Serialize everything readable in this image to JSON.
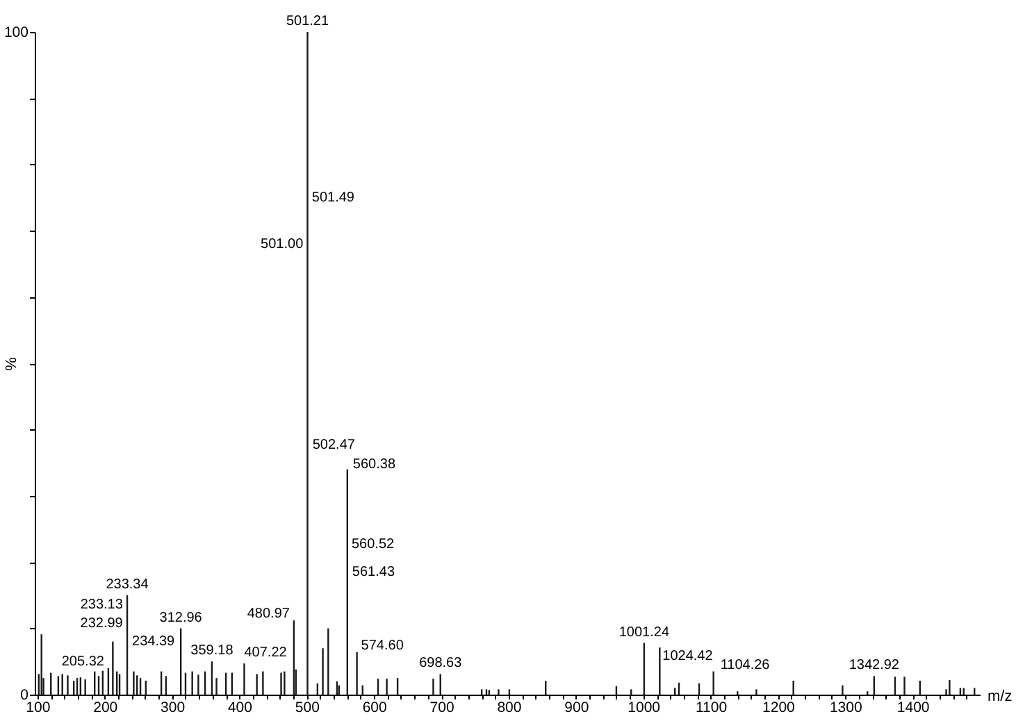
{
  "chart_data": {
    "type": "bar",
    "xlabel": "m/z",
    "ylabel": "%",
    "color": "#1a1a1a",
    "x": [
      102,
      106,
      109,
      120,
      131,
      137,
      145,
      154,
      159,
      164,
      171,
      185,
      191,
      197,
      205.32,
      212,
      218,
      222,
      233.34,
      243,
      248,
      253,
      261,
      284,
      291,
      312.96,
      320,
      330,
      339,
      349,
      359.18,
      366,
      380,
      389,
      407.22,
      426,
      435,
      462,
      467,
      480.97,
      484,
      501.21,
      516,
      524,
      532,
      545,
      548,
      560.38,
      574.6,
      583,
      606,
      619,
      635,
      688,
      698.63,
      760,
      767,
      771,
      785,
      801,
      855,
      960,
      982,
      1001.24,
      1024.42,
      1047,
      1053,
      1083,
      1104.26,
      1140,
      1168,
      1223,
      1296,
      1333,
      1342.92,
      1374,
      1388,
      1411,
      1450,
      1455,
      1471,
      1476,
      1492
    ],
    "values": [
      3.1,
      9.1,
      2.5,
      3.3,
      2.8,
      3.1,
      2.9,
      2.1,
      2.5,
      2.6,
      2.3,
      3.5,
      2.8,
      3.6,
      4.0,
      8.0,
      3.5,
      3.1,
      15.0,
      3.5,
      2.9,
      2.5,
      2.1,
      3.5,
      2.8,
      10.0,
      3.3,
      3.5,
      3.0,
      3.5,
      5.0,
      2.5,
      3.3,
      3.3,
      4.7,
      3.1,
      3.5,
      3.3,
      3.5,
      11.2,
      3.8,
      100,
      1.7,
      7.0,
      10.0,
      2.0,
      1.4,
      34.0,
      6.4,
      1.4,
      2.4,
      2.4,
      2.5,
      2.4,
      3.1,
      0.8,
      0.8,
      0.7,
      0.8,
      0.8,
      2.1,
      1.3,
      0.8,
      7.8,
      7.1,
      1.0,
      1.8,
      1.7,
      3.5,
      0.5,
      0.8,
      2.1,
      1.4,
      0.5,
      2.8,
      2.7,
      2.7,
      2.1,
      0.8,
      2.2,
      1.0,
      1.0,
      1.0
    ],
    "xlim": [
      96,
      1500
    ],
    "xticks": [
      100,
      {
        "value": 120,
        "label": null
      },
      {
        "value": 140,
        "label": null
      },
      {
        "value": 160,
        "label": null
      },
      {
        "value": 180,
        "label": null
      },
      200,
      {
        "value": 220,
        "label": null
      },
      {
        "value": 240,
        "label": null
      },
      {
        "value": 260,
        "label": null
      },
      {
        "value": 280,
        "label": null
      },
      300,
      {
        "value": 320,
        "label": null
      },
      {
        "value": 340,
        "label": null
      },
      {
        "value": 360,
        "label": null
      },
      {
        "value": 380,
        "label": null
      },
      400,
      {
        "value": 420,
        "label": null
      },
      {
        "value": 440,
        "label": null
      },
      {
        "value": 460,
        "label": null
      },
      {
        "value": 480,
        "label": null
      },
      500,
      {
        "value": 520,
        "label": null
      },
      {
        "value": 540,
        "label": null
      },
      {
        "value": 560,
        "label": null
      },
      {
        "value": 580,
        "label": null
      },
      600,
      {
        "value": 620,
        "label": null
      },
      {
        "value": 640,
        "label": null
      },
      {
        "value": 660,
        "label": null
      },
      {
        "value": 680,
        "label": null
      },
      700,
      {
        "value": 720,
        "label": null
      },
      {
        "value": 740,
        "label": null
      },
      {
        "value": 760,
        "label": null
      },
      {
        "value": 780,
        "label": null
      },
      800,
      {
        "value": 820,
        "label": null
      },
      {
        "value": 840,
        "label": null
      },
      {
        "value": 860,
        "label": null
      },
      {
        "value": 880,
        "label": null
      },
      900,
      {
        "value": 920,
        "label": null
      },
      {
        "value": 940,
        "label": null
      },
      {
        "value": 960,
        "label": null
      },
      {
        "value": 980,
        "label": null
      },
      1000,
      {
        "value": 1020,
        "label": null
      },
      {
        "value": 1040,
        "label": null
      },
      {
        "value": 1060,
        "label": null
      },
      {
        "value": 1080,
        "label": null
      },
      1100,
      {
        "value": 1120,
        "label": null
      },
      {
        "value": 1140,
        "label": null
      },
      {
        "value": 1160,
        "label": null
      },
      {
        "value": 1180,
        "label": null
      },
      1200,
      {
        "value": 1220,
        "label": null
      },
      {
        "value": 1240,
        "label": null
      },
      {
        "value": 1260,
        "label": null
      },
      {
        "value": 1280,
        "label": null
      },
      1300,
      {
        "value": 1320,
        "label": null
      },
      {
        "value": 1340,
        "label": null
      },
      {
        "value": 1360,
        "label": null
      },
      {
        "value": 1380,
        "label": null
      },
      1400,
      {
        "value": 1420,
        "label": null
      },
      {
        "value": 1440,
        "label": null
      },
      {
        "value": 1460,
        "label": null
      },
      {
        "value": 1480,
        "label": null
      }
    ],
    "ylim": [
      0,
      100
    ],
    "yticks": [
      0,
      {
        "value": 10,
        "label": null
      },
      {
        "value": 20,
        "label": null
      },
      {
        "value": 30,
        "label": null
      },
      {
        "value": 40,
        "label": null
      },
      {
        "value": 50,
        "label": null
      },
      {
        "value": 60,
        "label": null
      },
      {
        "value": 70,
        "label": null
      },
      {
        "value": 80,
        "label": null
      },
      {
        "value": 90,
        "label": null
      },
      100
    ],
    "annotations": [
      {
        "text": "501.21",
        "x": 501.21,
        "y": 100
      },
      {
        "text": "501.49",
        "x": 501.49,
        "y": 74
      },
      {
        "text": "501.00",
        "x": 501.0,
        "y": 67
      },
      {
        "text": "502.47",
        "x": 502.47,
        "y": 35
      },
      {
        "text": "560.38",
        "x": 560.38,
        "y": 34
      },
      {
        "text": "560.52",
        "x": 560.52,
        "y": 21.7
      },
      {
        "text": "561.43",
        "x": 561.43,
        "y": 17.5
      },
      {
        "text": "233.34",
        "x": 233.34,
        "y": 15
      },
      {
        "text": "233.13",
        "x": 233.13,
        "y": 12.6
      },
      {
        "text": "232.99",
        "x": 232.99,
        "y": 9.8
      },
      {
        "text": "234.39",
        "x": 234.39,
        "y": 7.0
      },
      {
        "text": "205.32",
        "x": 205.32,
        "y": 4.0
      },
      {
        "text": "312.96",
        "x": 312.96,
        "y": 10
      },
      {
        "text": "359.18",
        "x": 359.18,
        "y": 5
      },
      {
        "text": "407.22",
        "x": 407.22,
        "y": 4.7
      },
      {
        "text": "480.97",
        "x": 480.97,
        "y": 11.2
      },
      {
        "text": "574.60",
        "x": 574.6,
        "y": 6.4
      },
      {
        "text": "698.63",
        "x": 698.63,
        "y": 3.1
      },
      {
        "text": "1001.24",
        "x": 1001.24,
        "y": 7.8
      },
      {
        "text": "1024.42",
        "x": 1024.42,
        "y": 7.1
      },
      {
        "text": "1104.26",
        "x": 1104.26,
        "y": 3.5
      },
      {
        "text": "1342.92",
        "x": 1342.92,
        "y": 2.8
      }
    ]
  }
}
